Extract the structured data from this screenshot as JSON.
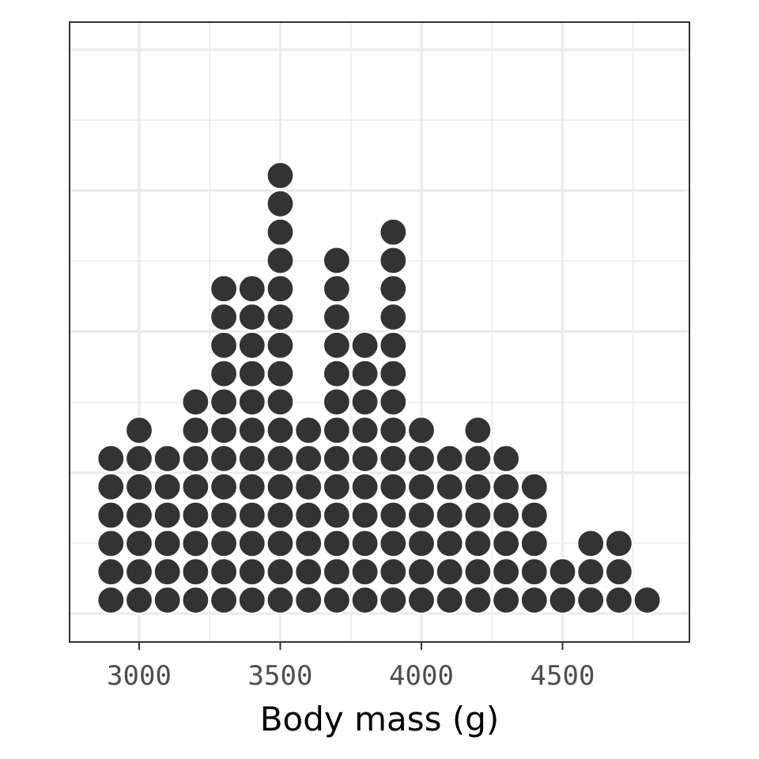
{
  "chart_data": {
    "type": "scatter",
    "subtype": "dotplot",
    "xlabel": "Body mass (g)",
    "ylabel": "",
    "title": "",
    "xlim": [
      2750,
      4950
    ],
    "x_ticks": [
      3000,
      3500,
      4000,
      4500
    ],
    "x_tick_labels": [
      "3000",
      "3500",
      "4000",
      "4500"
    ],
    "y_axis_labels_shown": false,
    "grid": true,
    "legend": "none",
    "bins": [
      {
        "x": 2900,
        "count": 6
      },
      {
        "x": 3000,
        "count": 7
      },
      {
        "x": 3100,
        "count": 6
      },
      {
        "x": 3200,
        "count": 8
      },
      {
        "x": 3300,
        "count": 12
      },
      {
        "x": 3400,
        "count": 12
      },
      {
        "x": 3500,
        "count": 16
      },
      {
        "x": 3600,
        "count": 7
      },
      {
        "x": 3700,
        "count": 13
      },
      {
        "x": 3800,
        "count": 10
      },
      {
        "x": 3900,
        "count": 14
      },
      {
        "x": 4000,
        "count": 7
      },
      {
        "x": 4100,
        "count": 6
      },
      {
        "x": 4200,
        "count": 7
      },
      {
        "x": 4300,
        "count": 6
      },
      {
        "x": 4400,
        "count": 5
      },
      {
        "x": 4500,
        "count": 2
      },
      {
        "x": 4600,
        "count": 3
      },
      {
        "x": 4700,
        "count": 3
      },
      {
        "x": 4800,
        "count": 1
      }
    ],
    "colors": {
      "dot_fill": "#333333",
      "dot_stroke": "#ffffff",
      "grid": "#ebebeb",
      "panel_border": "#333333",
      "background": "#ffffff"
    }
  }
}
